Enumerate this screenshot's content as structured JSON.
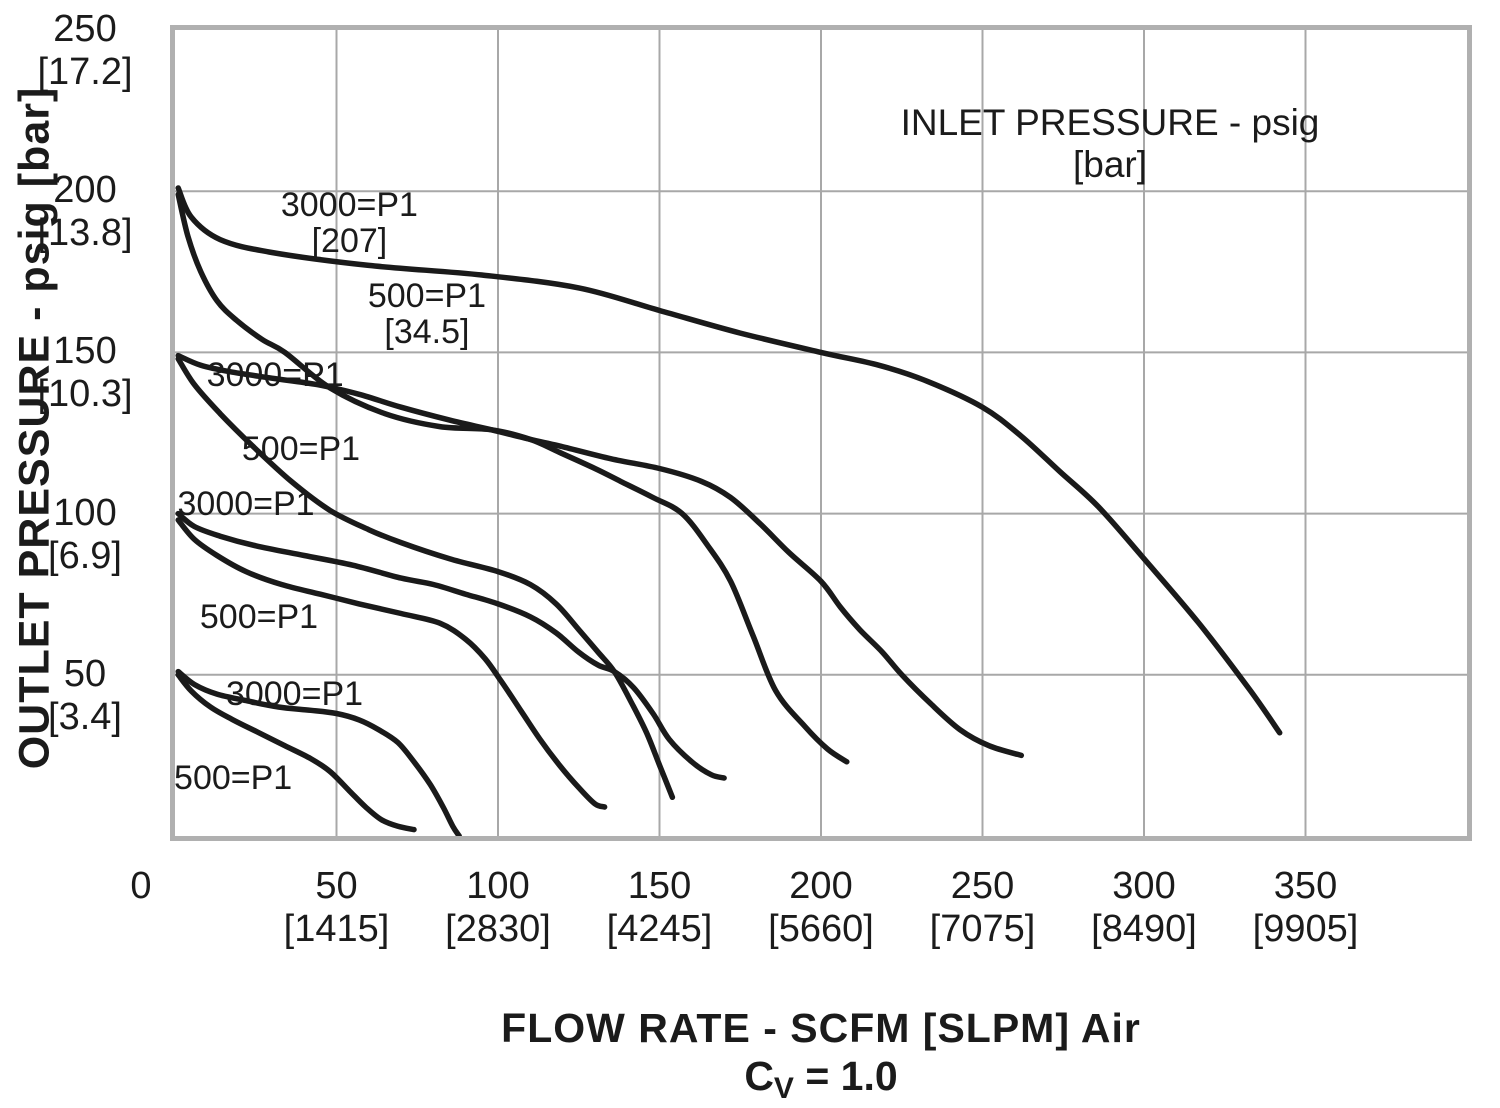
{
  "inlet_legend_title": "INLET PRESSURE - psig [bar]",
  "y_axis": {
    "title": "OUTLET PRESSURE - psig [bar]",
    "ticks": [
      {
        "label": "250",
        "bracket": "[17.2]",
        "value": 250
      },
      {
        "label": "200",
        "bracket": "[13.8]",
        "value": 200
      },
      {
        "label": "150",
        "bracket": "[10.3]",
        "value": 150
      },
      {
        "label": "100",
        "bracket": "[6.9]",
        "value": 100
      },
      {
        "label": "50",
        "bracket": "[3.4]",
        "value": 50
      }
    ]
  },
  "x_axis": {
    "title": "FLOW RATE - SCFM [SLPM] Air",
    "cv_prefix": "C",
    "cv_sub": "V",
    "cv_suffix": " = 1.0",
    "ticks": [
      {
        "label": "0",
        "bracket": "",
        "value": 0,
        "dx": -34
      },
      {
        "label": "50",
        "bracket": "[1415]",
        "value": 50
      },
      {
        "label": "100",
        "bracket": "[2830]",
        "value": 100
      },
      {
        "label": "150",
        "bracket": "[4245]",
        "value": 150
      },
      {
        "label": "200",
        "bracket": "[5660]",
        "value": 200
      },
      {
        "label": "250",
        "bracket": "[7075]",
        "value": 250
      },
      {
        "label": "300",
        "bracket": "[8490]",
        "value": 300
      },
      {
        "label": "350",
        "bracket": "[9905]",
        "value": 350
      }
    ]
  },
  "colors": {
    "curve": "#1a1a1a",
    "grid": "#a8a8a8",
    "border": "#b0b0b0",
    "text": "#1b1b1b"
  },
  "chart_data": {
    "type": "line",
    "title": "INLET PRESSURE - psig [bar]",
    "xlabel": "FLOW RATE - SCFM [SLPM] Air",
    "x_sublabel": "Cv = 1.0",
    "ylabel": "OUTLET PRESSURE - psig [bar]",
    "xlim": [
      0,
      400
    ],
    "ylim": [
      0,
      250
    ],
    "grid": true,
    "grid_step_x": 50,
    "grid_step_y": 50,
    "series": [
      {
        "name": "outlet-set-200psig-inlet-3000psig",
        "outlet_set_psig": 200,
        "inlet_psig": 3000,
        "points": [
          [
            1,
            201
          ],
          [
            5,
            192
          ],
          [
            14,
            185
          ],
          [
            30,
            181
          ],
          [
            60,
            177
          ],
          [
            95,
            174
          ],
          [
            125,
            170
          ],
          [
            150,
            163
          ],
          [
            175,
            156
          ],
          [
            200,
            150
          ],
          [
            218,
            146
          ],
          [
            233,
            141
          ],
          [
            250,
            133
          ],
          [
            262,
            124
          ],
          [
            274,
            113
          ],
          [
            286,
            102
          ],
          [
            300,
            86
          ],
          [
            317,
            66
          ],
          [
            333,
            45
          ],
          [
            342,
            32
          ]
        ]
      },
      {
        "name": "outlet-set-200psig-inlet-500psig",
        "outlet_set_psig": 200,
        "inlet_psig": 500,
        "points": [
          [
            1,
            199
          ],
          [
            4,
            186
          ],
          [
            8,
            175
          ],
          [
            13,
            166
          ],
          [
            19,
            160
          ],
          [
            27,
            154
          ],
          [
            34,
            150
          ],
          [
            48,
            139
          ],
          [
            65,
            131
          ],
          [
            82,
            127
          ],
          [
            98,
            126
          ],
          [
            110,
            123
          ],
          [
            119,
            119
          ],
          [
            130,
            114
          ],
          [
            138,
            110
          ],
          [
            148,
            105
          ],
          [
            157,
            100
          ],
          [
            165,
            90
          ],
          [
            172,
            79
          ],
          [
            179,
            62
          ],
          [
            186,
            45
          ],
          [
            195,
            34
          ],
          [
            202,
            27
          ],
          [
            208,
            23
          ]
        ]
      },
      {
        "name": "outlet-set-150psig-inlet-3000psig",
        "outlet_set_psig": 150,
        "inlet_psig": 3000,
        "points": [
          [
            1,
            149
          ],
          [
            8,
            146
          ],
          [
            17,
            144
          ],
          [
            30,
            142
          ],
          [
            44,
            140
          ],
          [
            57,
            137
          ],
          [
            70,
            133
          ],
          [
            85,
            129
          ],
          [
            98,
            126
          ],
          [
            110,
            123
          ],
          [
            119,
            121
          ],
          [
            135,
            117
          ],
          [
            150,
            114
          ],
          [
            163,
            110
          ],
          [
            172,
            105
          ],
          [
            181,
            97
          ],
          [
            190,
            88
          ],
          [
            200,
            79
          ],
          [
            206,
            71
          ],
          [
            212,
            64
          ],
          [
            219,
            57
          ],
          [
            225,
            50
          ],
          [
            234,
            41
          ],
          [
            243,
            33
          ],
          [
            252,
            28
          ],
          [
            262,
            25
          ]
        ]
      },
      {
        "name": "outlet-set-150psig-inlet-500psig",
        "outlet_set_psig": 150,
        "inlet_psig": 500,
        "points": [
          [
            1,
            148
          ],
          [
            6,
            140
          ],
          [
            14,
            131
          ],
          [
            24,
            121
          ],
          [
            36,
            110
          ],
          [
            48,
            101
          ],
          [
            60,
            95
          ],
          [
            70,
            91
          ],
          [
            85,
            86
          ],
          [
            100,
            82
          ],
          [
            110,
            78
          ],
          [
            118,
            72
          ],
          [
            125,
            64
          ],
          [
            131,
            57
          ],
          [
            136,
            51
          ],
          [
            141,
            42
          ],
          [
            146,
            32
          ],
          [
            150,
            22
          ],
          [
            154,
            12
          ]
        ]
      },
      {
        "name": "outlet-set-100psig-inlet-3000psig",
        "outlet_set_psig": 100,
        "inlet_psig": 3000,
        "points": [
          [
            1,
            100
          ],
          [
            6,
            96
          ],
          [
            14,
            93
          ],
          [
            25,
            90
          ],
          [
            40,
            87
          ],
          [
            55,
            84
          ],
          [
            70,
            80
          ],
          [
            80,
            78
          ],
          [
            90,
            75
          ],
          [
            100,
            72
          ],
          [
            110,
            68
          ],
          [
            118,
            63
          ],
          [
            125,
            57
          ],
          [
            131,
            53
          ],
          [
            136,
            51
          ],
          [
            142,
            46
          ],
          [
            148,
            38
          ],
          [
            153,
            30
          ],
          [
            160,
            23
          ],
          [
            166,
            19
          ],
          [
            170,
            18
          ]
        ]
      },
      {
        "name": "outlet-set-100psig-inlet-500psig",
        "outlet_set_psig": 100,
        "inlet_psig": 500,
        "points": [
          [
            1,
            98
          ],
          [
            6,
            92
          ],
          [
            13,
            87
          ],
          [
            22,
            82
          ],
          [
            33,
            78
          ],
          [
            45,
            75
          ],
          [
            57,
            72
          ],
          [
            70,
            69
          ],
          [
            82,
            66
          ],
          [
            90,
            61
          ],
          [
            96,
            55
          ],
          [
            101,
            48
          ],
          [
            107,
            39
          ],
          [
            113,
            30
          ],
          [
            119,
            22
          ],
          [
            125,
            15
          ],
          [
            130,
            10
          ],
          [
            133,
            9
          ]
        ]
      },
      {
        "name": "outlet-set-50psig-inlet-3000psig",
        "outlet_set_psig": 50,
        "inlet_psig": 3000,
        "points": [
          [
            1,
            51
          ],
          [
            6,
            47
          ],
          [
            13,
            44
          ],
          [
            22,
            42
          ],
          [
            32,
            40
          ],
          [
            42,
            39
          ],
          [
            50,
            38
          ],
          [
            57,
            36
          ],
          [
            63,
            33
          ],
          [
            69,
            29
          ],
          [
            74,
            23
          ],
          [
            79,
            16
          ],
          [
            83,
            9
          ],
          [
            86,
            3
          ],
          [
            88,
            0
          ]
        ]
      },
      {
        "name": "outlet-set-50psig-inlet-500psig",
        "outlet_set_psig": 50,
        "inlet_psig": 500,
        "points": [
          [
            1,
            50
          ],
          [
            5,
            45
          ],
          [
            11,
            40
          ],
          [
            18,
            36
          ],
          [
            26,
            32
          ],
          [
            34,
            28
          ],
          [
            42,
            24
          ],
          [
            48,
            20
          ],
          [
            54,
            14
          ],
          [
            59,
            9
          ],
          [
            64,
            5
          ],
          [
            69,
            3
          ],
          [
            74,
            2
          ]
        ]
      }
    ],
    "curve_labels": [
      {
        "lines": [
          "3000=P1",
          "[207]"
        ],
        "x": 54,
        "y": 190,
        "series": "outlet-set-200psig-inlet-3000psig"
      },
      {
        "lines": [
          "500=P1",
          "[34.5]"
        ],
        "x": 78,
        "y": 162,
        "series": "outlet-set-200psig-inlet-500psig"
      },
      {
        "lines": [
          "3000=P1"
        ],
        "x": 31,
        "y": 143,
        "series": "outlet-set-150psig-inlet-3000psig"
      },
      {
        "lines": [
          "500=P1"
        ],
        "x": 39,
        "y": 120,
        "series": "outlet-set-150psig-inlet-500psig"
      },
      {
        "lines": [
          "3000=P1"
        ],
        "x": 22,
        "y": 103,
        "series": "outlet-set-100psig-inlet-3000psig"
      },
      {
        "lines": [
          "500=P1"
        ],
        "x": 26,
        "y": 68,
        "series": "outlet-set-100psig-inlet-500psig"
      },
      {
        "lines": [
          "3000=P1"
        ],
        "x": 37,
        "y": 44,
        "series": "outlet-set-50psig-inlet-3000psig"
      },
      {
        "lines": [
          "500=P1"
        ],
        "x": 18,
        "y": 18,
        "series": "outlet-set-50psig-inlet-500psig"
      }
    ],
    "legend_position": "inside-top-right"
  }
}
